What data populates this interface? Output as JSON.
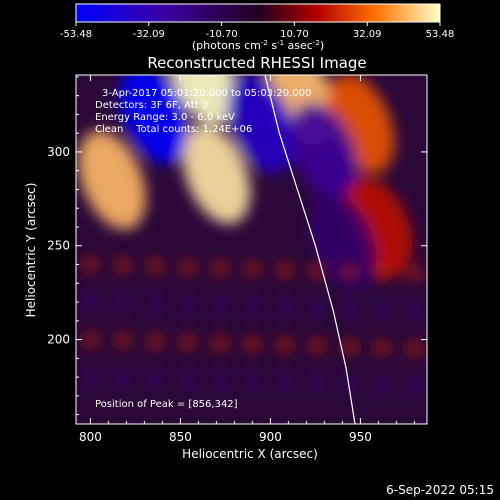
{
  "chart_data": {
    "type": "heatmap",
    "title": "Reconstructed RHESSI Image",
    "xlabel": "Heliocentric X (arcsec)",
    "ylabel": "Heliocentric Y (arcsec)",
    "xlim": [
      792,
      987
    ],
    "ylim": [
      155,
      341
    ],
    "xticks": [
      800,
      850,
      900,
      950
    ],
    "yticks": [
      200,
      250,
      300
    ],
    "colorbar": {
      "min": -53.48,
      "max": 53.48,
      "tick_labels": [
        "-53.48",
        "-32.09",
        "-10.70",
        "10.70",
        "32.09",
        "53.48"
      ],
      "unit_parts": [
        "(photons cm",
        "-2",
        " s",
        "-1",
        " asec",
        "-2",
        ")"
      ]
    },
    "annotations": {
      "time": "3-Apr-2017 05:01:20.000 to 05:03:20.000",
      "detectors": "Detectors: 3F 6F, Att 0",
      "energy": "Energy Range: 3.0 - 6.0 keV",
      "clean": "Clean    Total counts: 1.24E+06",
      "peak": "Position of Peak = [856,342]"
    },
    "peak": [
      856,
      342
    ],
    "blobs": [
      {
        "x": 862,
        "y": 341,
        "value": 53.48
      },
      {
        "x": 917,
        "y": 330,
        "value": 45
      },
      {
        "x": 950,
        "y": 315,
        "value": 30
      },
      {
        "x": 812,
        "y": 285,
        "value": 44
      },
      {
        "x": 870,
        "y": 288,
        "value": 50
      },
      {
        "x": 835,
        "y": 320,
        "value": -53
      },
      {
        "x": 895,
        "y": 315,
        "value": -38
      },
      {
        "x": 930,
        "y": 300,
        "value": -25
      },
      {
        "x": 960,
        "y": 260,
        "value": 20
      },
      {
        "x": 940,
        "y": 252,
        "value": -15
      }
    ],
    "limb_curve": {
      "x": [
        897,
        905,
        915,
        925,
        935,
        942,
        947
      ],
      "y": [
        341,
        310,
        280,
        250,
        215,
        185,
        155
      ]
    },
    "footer": "6-Sep-2022 05:15"
  }
}
